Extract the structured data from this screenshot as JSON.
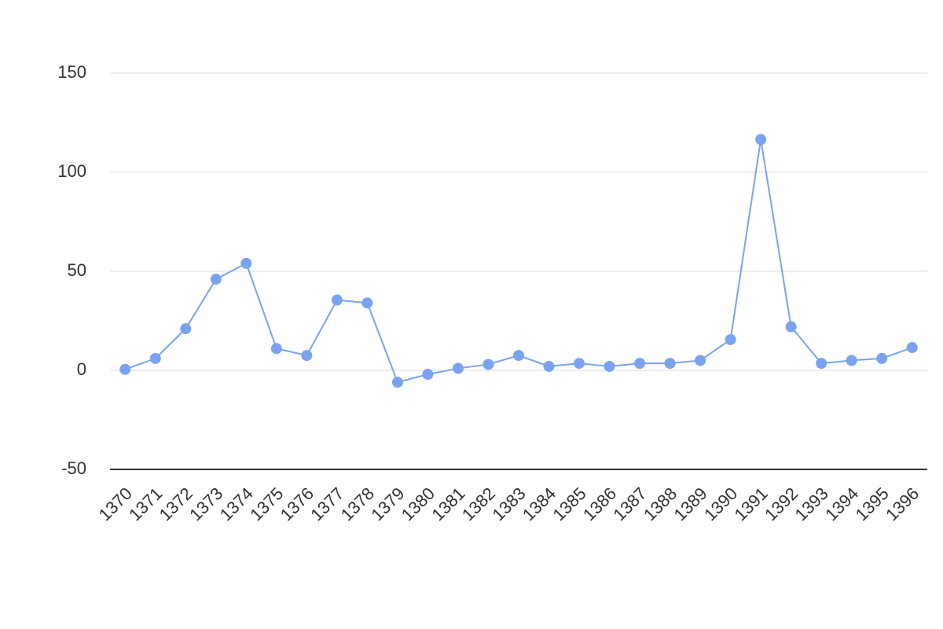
{
  "chart_data": {
    "type": "line",
    "categories": [
      "1370",
      "1371",
      "1372",
      "1373",
      "1374",
      "1375",
      "1376",
      "1377",
      "1378",
      "1379",
      "1380",
      "1381",
      "1382",
      "1383",
      "1384",
      "1385",
      "1386",
      "1387",
      "1388",
      "1389",
      "1390",
      "1391",
      "1392",
      "1393",
      "1394",
      "1395",
      "1396"
    ],
    "values": [
      0.5,
      6,
      21,
      46,
      54,
      11,
      7.5,
      35.5,
      34,
      -6,
      -2,
      1,
      3,
      7.5,
      2,
      3.5,
      2,
      3.5,
      3.5,
      5,
      15.5,
      116.5,
      22,
      3.5,
      5,
      6,
      11.5
    ],
    "color": "#7aa3ef",
    "ylim": [
      -50,
      150
    ],
    "yticks": [
      -50,
      0,
      50,
      100,
      150
    ],
    "grid": true
  }
}
